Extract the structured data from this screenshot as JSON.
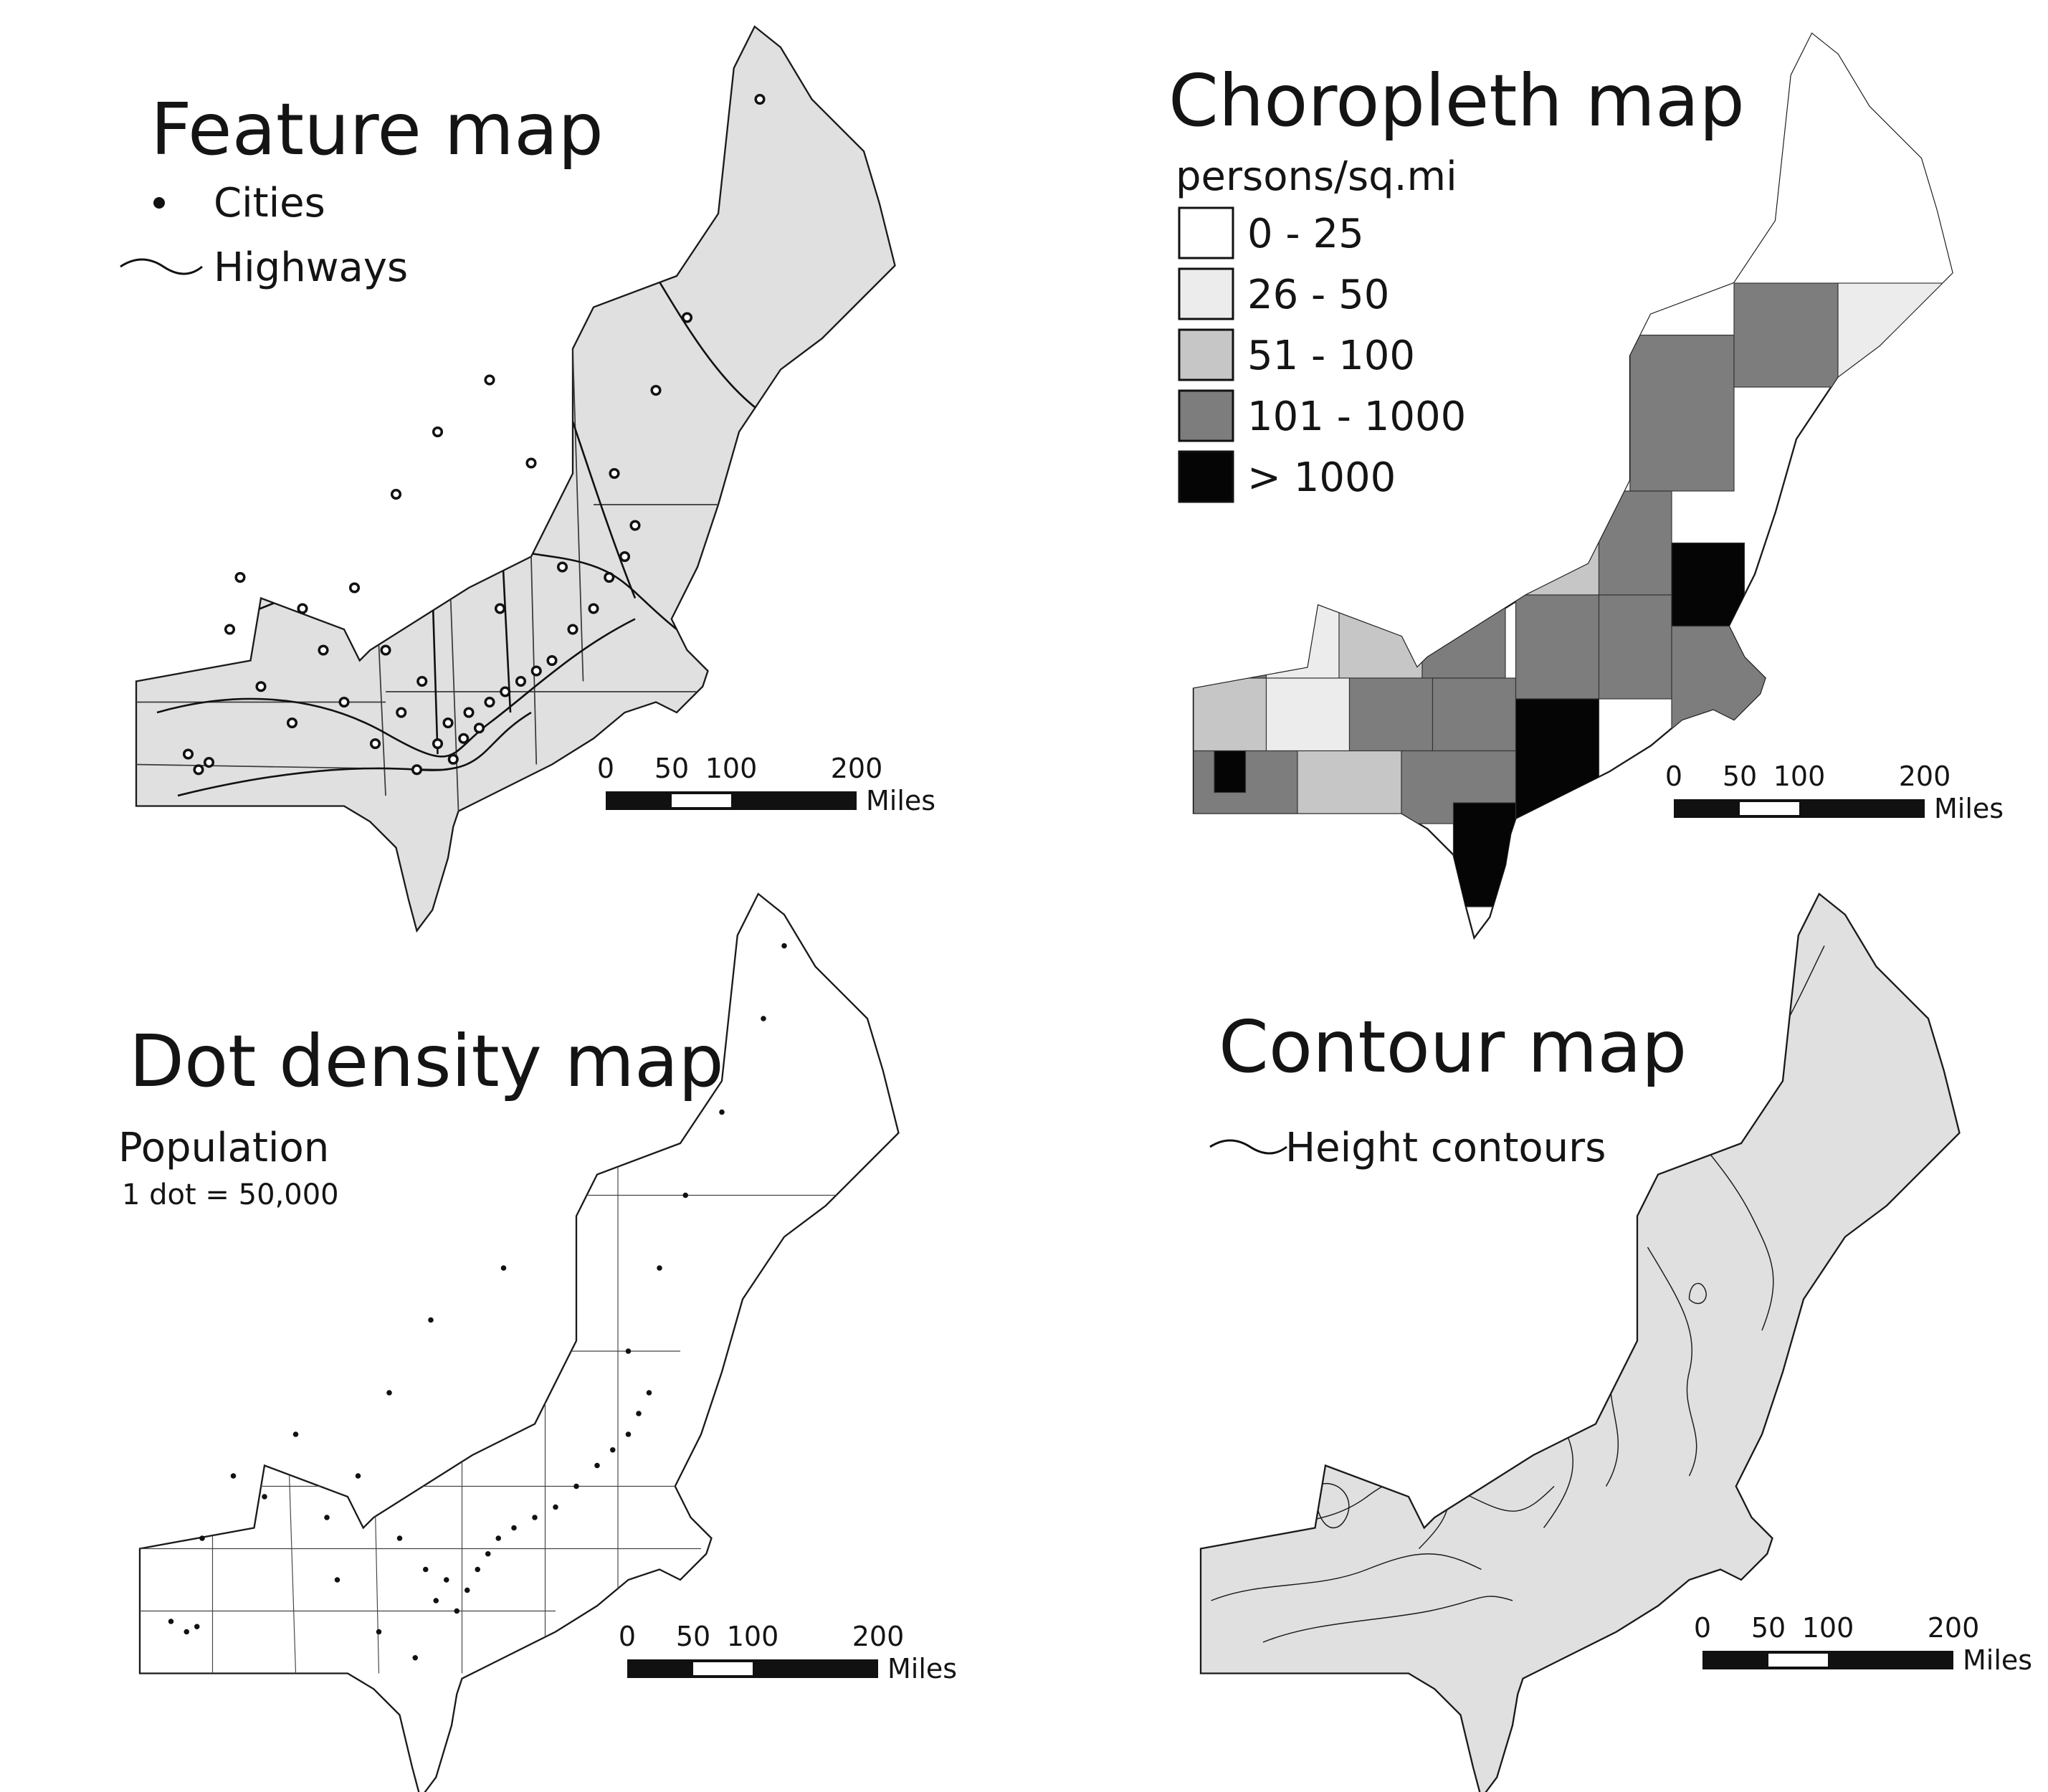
{
  "colors": {
    "land_gray": "#e0e0e0",
    "outline": "#1a1a1a",
    "class_0_25": "#ffffff",
    "class_26_50": "#ececec",
    "class_51_100": "#c6c6c6",
    "class_101_1000": "#7d7d7d",
    "class_gt_1000": "#050505"
  },
  "feature_map": {
    "title": "Feature map",
    "legend": [
      {
        "symbol": "dot",
        "label": "Cities"
      },
      {
        "symbol": "line",
        "label": "Highways"
      }
    ],
    "scale": {
      "ticks": [
        "0",
        "50",
        "100",
        "200"
      ],
      "unit": "Miles"
    }
  },
  "choropleth_map": {
    "title": "Choropleth map",
    "legend_title": "persons/sq.mi",
    "classes": [
      {
        "label": "0 - 25",
        "color": "#ffffff"
      },
      {
        "label": "26 - 50",
        "color": "#ececec"
      },
      {
        "label": "51 - 100",
        "color": "#c6c6c6"
      },
      {
        "label": "101 - 1000",
        "color": "#7d7d7d"
      },
      {
        "label": "> 1000",
        "color": "#050505"
      }
    ],
    "scale": {
      "ticks": [
        "0",
        "50",
        "100",
        "200"
      ],
      "unit": "Miles"
    }
  },
  "dot_density_map": {
    "title": "Dot density map",
    "legend_title": "Population",
    "legend_note": "1 dot = 50,000",
    "scale": {
      "ticks": [
        "0",
        "50",
        "100",
        "200"
      ],
      "unit": "Miles"
    }
  },
  "contour_map": {
    "title": "Contour map",
    "legend": [
      {
        "symbol": "line",
        "label": "Height contours"
      }
    ],
    "scale": {
      "ticks": [
        "0",
        "50",
        "100",
        "200"
      ],
      "unit": "Miles"
    }
  }
}
